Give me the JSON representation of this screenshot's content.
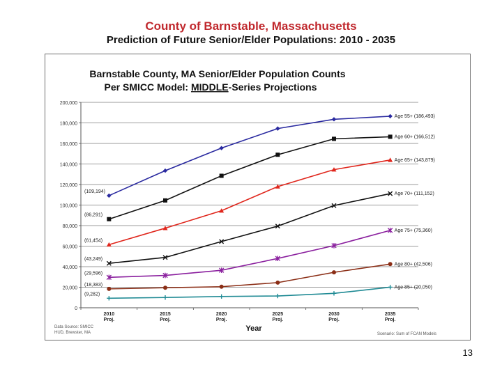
{
  "slide": {
    "title": "County of Barnstable, Massachusetts",
    "subtitle": "Prediction of Future Senior/Elder Populations:  2010 - 2035",
    "page_number": "13"
  },
  "chart_data": {
    "type": "line",
    "title": "Barnstable County, MA Senior/Elder Population Counts",
    "subtitle_prefix": "Per SMICC Model: ",
    "subtitle_emphasis": "MIDDLE",
    "subtitle_suffix": "-Series Projections",
    "xlabel": "Year",
    "ylabel": "",
    "ylim": [
      0,
      200000
    ],
    "yticks": [
      0,
      20000,
      40000,
      60000,
      80000,
      100000,
      120000,
      140000,
      160000,
      180000,
      200000
    ],
    "ytick_labels": [
      "0",
      "20,000",
      "40,000",
      "60,000",
      "80,000",
      "100,000",
      "120,000",
      "140,000",
      "160,000",
      "180,000",
      "200,000"
    ],
    "categories": [
      {
        "year": "2010",
        "sub": "Proj."
      },
      {
        "year": "2015",
        "sub": "Proj."
      },
      {
        "year": "2020",
        "sub": "Proj."
      },
      {
        "year": "2025",
        "sub": "Proj."
      },
      {
        "year": "2030",
        "sub": "Proj."
      },
      {
        "year": "2035",
        "sub": "Proj."
      }
    ],
    "series": [
      {
        "name": "Age 55+",
        "start_label": "(109,194)",
        "end_label": "Age 55+ (186,493)",
        "color": "#2a2aa0",
        "marker": "diamond",
        "values": [
          109194,
          133500,
          155500,
          174500,
          183500,
          186493
        ]
      },
      {
        "name": "Age 60+",
        "start_label": "(86,291)",
        "end_label": "Age 60+ (166,512)",
        "color": "#111111",
        "marker": "square",
        "values": [
          86291,
          104500,
          128500,
          149000,
          164500,
          166512
        ]
      },
      {
        "name": "Age 65+",
        "start_label": "(61,454)",
        "end_label": "Age 65+ (143,879)",
        "color": "#e0261c",
        "marker": "triangle",
        "values": [
          61454,
          77500,
          94500,
          118000,
          134500,
          143879
        ]
      },
      {
        "name": "Age 70+",
        "start_label": "(43,249)",
        "end_label": "Age 70+ (111,152)",
        "color": "#111111",
        "marker": "x",
        "values": [
          43249,
          49000,
          64500,
          79500,
          99500,
          111152
        ]
      },
      {
        "name": "Age 75+",
        "start_label": "(29,596)",
        "end_label": "Age 75+ (75,360)",
        "color": "#8a1f9e",
        "marker": "star",
        "values": [
          29596,
          31500,
          36500,
          48000,
          60500,
          75360
        ]
      },
      {
        "name": "Age 80+",
        "start_label": "(18,383)",
        "end_label": "Age 80+ (42,506)",
        "color": "#8b2e16",
        "marker": "circle",
        "values": [
          18383,
          19500,
          20500,
          24500,
          34500,
          42506
        ]
      },
      {
        "name": "Age 85+",
        "start_label": "(9,282)",
        "end_label": "Age 85+ (20,050)",
        "color": "#1f8a94",
        "marker": "plus",
        "values": [
          9282,
          10000,
          11000,
          11500,
          14000,
          20050
        ]
      }
    ],
    "data_source": [
      "Data Source: SMICC",
      "HUD, Brewster, MA"
    ],
    "scenario_note": "Scenario: Sum of FCAN Models"
  }
}
